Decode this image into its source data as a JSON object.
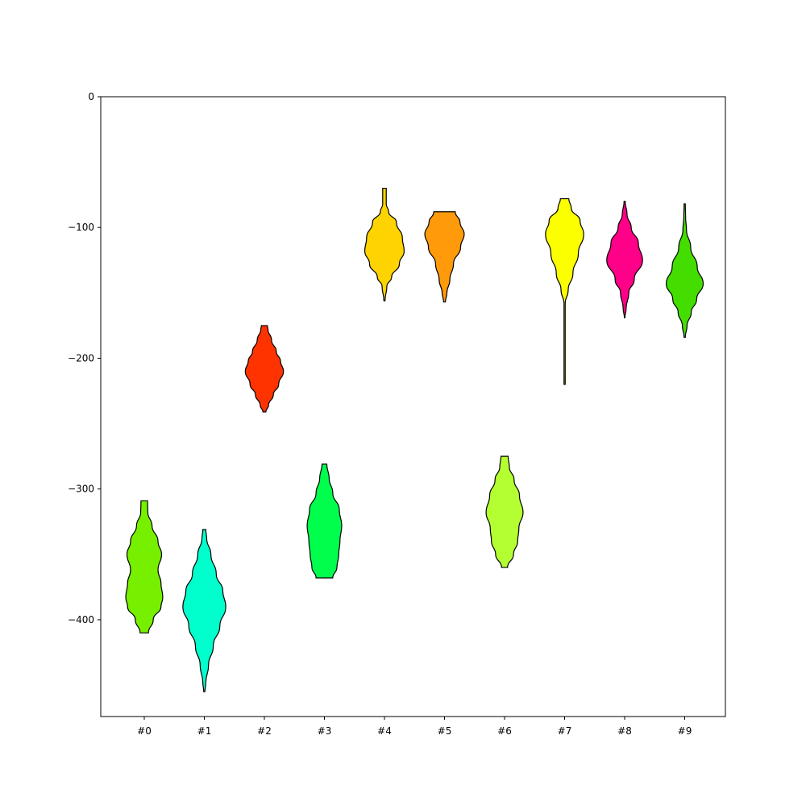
{
  "chart_data": {
    "type": "violin",
    "title": "",
    "xlabel": "",
    "ylabel": "",
    "categories": [
      "#0",
      "#1",
      "#2",
      "#3",
      "#4",
      "#5",
      "#6",
      "#7",
      "#8",
      "#9"
    ],
    "ylim": [
      -474,
      0
    ],
    "yticks": [
      0,
      -100,
      -200,
      -300,
      -400
    ],
    "ytick_labels": [
      "0",
      "−100",
      "−200",
      "−300",
      "−400"
    ],
    "grid": false,
    "legend": "none",
    "series": [
      {
        "category": "#0",
        "color": "#77f000",
        "min": -410,
        "max": -309,
        "profile": [
          [
            -410,
            0.14
          ],
          [
            -400,
            0.3
          ],
          [
            -390,
            0.56
          ],
          [
            -383,
            0.62
          ],
          [
            -372,
            0.56
          ],
          [
            -362,
            0.46
          ],
          [
            -350,
            0.58
          ],
          [
            -340,
            0.46
          ],
          [
            -328,
            0.26
          ],
          [
            -318,
            0.12
          ],
          [
            -309,
            0.11
          ]
        ]
      },
      {
        "category": "#1",
        "color": "#00ffcc",
        "min": -455,
        "max": -331,
        "profile": [
          [
            -455,
            0.02
          ],
          [
            -448,
            0.05
          ],
          [
            -435,
            0.14
          ],
          [
            -420,
            0.3
          ],
          [
            -405,
            0.52
          ],
          [
            -390,
            0.72
          ],
          [
            -378,
            0.62
          ],
          [
            -365,
            0.4
          ],
          [
            -350,
            0.22
          ],
          [
            -338,
            0.08
          ],
          [
            -331,
            0.05
          ]
        ]
      },
      {
        "category": "#2",
        "color": "#ff3300",
        "min": -241,
        "max": -175,
        "profile": [
          [
            -241,
            0.05
          ],
          [
            -236,
            0.14
          ],
          [
            -228,
            0.3
          ],
          [
            -220,
            0.48
          ],
          [
            -210,
            0.64
          ],
          [
            -202,
            0.54
          ],
          [
            -195,
            0.4
          ],
          [
            -186,
            0.24
          ],
          [
            -178,
            0.12
          ],
          [
            -175,
            0.1
          ]
        ]
      },
      {
        "category": "#3",
        "color": "#00ff4d",
        "min": -368,
        "max": -281,
        "profile": [
          [
            -368,
            0.28
          ],
          [
            -360,
            0.42
          ],
          [
            -350,
            0.48
          ],
          [
            -340,
            0.52
          ],
          [
            -328,
            0.58
          ],
          [
            -316,
            0.5
          ],
          [
            -303,
            0.28
          ],
          [
            -292,
            0.16
          ],
          [
            -281,
            0.08
          ]
        ]
      },
      {
        "category": "#4",
        "color": "#ffd300",
        "min": -156,
        "max": -70,
        "profile": [
          [
            -156,
            0.02
          ],
          [
            -145,
            0.08
          ],
          [
            -138,
            0.24
          ],
          [
            -128,
            0.5
          ],
          [
            -118,
            0.66
          ],
          [
            -108,
            0.6
          ],
          [
            -96,
            0.4
          ],
          [
            -88,
            0.14
          ],
          [
            -82,
            0.06
          ],
          [
            -70,
            0.06
          ]
        ]
      },
      {
        "category": "#5",
        "color": "#ff9a0a",
        "min": -157,
        "max": -88,
        "profile": [
          [
            -157,
            0.03
          ],
          [
            -150,
            0.08
          ],
          [
            -140,
            0.18
          ],
          [
            -128,
            0.3
          ],
          [
            -115,
            0.54
          ],
          [
            -105,
            0.66
          ],
          [
            -96,
            0.52
          ],
          [
            -88,
            0.36
          ]
        ]
      },
      {
        "category": "#6",
        "color": "#b4ff32",
        "min": -360,
        "max": -275,
        "profile": [
          [
            -360,
            0.1
          ],
          [
            -350,
            0.3
          ],
          [
            -340,
            0.44
          ],
          [
            -330,
            0.48
          ],
          [
            -318,
            0.62
          ],
          [
            -305,
            0.5
          ],
          [
            -293,
            0.32
          ],
          [
            -283,
            0.16
          ],
          [
            -275,
            0.12
          ]
        ]
      },
      {
        "category": "#7",
        "color": "#fbff00",
        "min": -220,
        "max": -78,
        "profile": [
          [
            -220,
            0.02
          ],
          [
            -158,
            0.02
          ],
          [
            -148,
            0.12
          ],
          [
            -135,
            0.28
          ],
          [
            -120,
            0.46
          ],
          [
            -105,
            0.64
          ],
          [
            -95,
            0.52
          ],
          [
            -85,
            0.22
          ],
          [
            -78,
            0.14
          ]
        ]
      },
      {
        "category": "#8",
        "color": "#ff0088",
        "min": -169,
        "max": -80,
        "profile": [
          [
            -169,
            0.01
          ],
          [
            -162,
            0.05
          ],
          [
            -150,
            0.14
          ],
          [
            -140,
            0.32
          ],
          [
            -125,
            0.6
          ],
          [
            -112,
            0.46
          ],
          [
            -100,
            0.22
          ],
          [
            -90,
            0.08
          ],
          [
            -80,
            0.02
          ]
        ]
      },
      {
        "category": "#9",
        "color": "#44dd00",
        "min": -184,
        "max": -82,
        "profile": [
          [
            -184,
            0.02
          ],
          [
            -175,
            0.08
          ],
          [
            -165,
            0.22
          ],
          [
            -155,
            0.4
          ],
          [
            -143,
            0.62
          ],
          [
            -130,
            0.42
          ],
          [
            -115,
            0.2
          ],
          [
            -102,
            0.06
          ],
          [
            -92,
            0.03
          ],
          [
            -82,
            0.02
          ]
        ]
      }
    ]
  }
}
